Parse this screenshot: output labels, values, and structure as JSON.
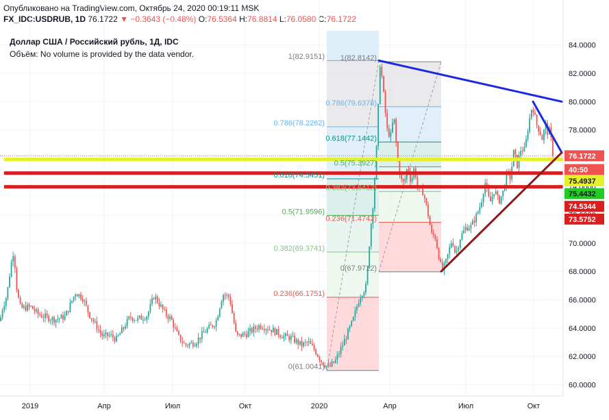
{
  "header": {
    "published": "Опубликовано на TradingView.com, Октябрь 24, 2020 00:19:11 MSK",
    "symbol": "FX_IDC:USDRUB, 1D",
    "last": "76.1722",
    "change": "▼ −0.3643 (−0.48%)",
    "o_label": "O:",
    "o_value": "76.5364",
    "h_label": "H:",
    "h_value": "76.8814",
    "l_label": "L:",
    "l_value": "76.0580",
    "c_label": "C:",
    "c_value": "76.1722"
  },
  "legend": {
    "title": "Доллар США / Российский рубль, 1Д, IDC",
    "volume_label": "Объём:",
    "volume_text": "No volume is provided by the data vendor."
  },
  "colors": {
    "up": "#26a69a",
    "down": "#ef5350",
    "blue_line": "#1a2bdf",
    "dark_red_line": "#8b1a1a",
    "yellow": "#e6f02a",
    "red": "#d81e1e"
  },
  "chart_data": {
    "type": "candlestick",
    "title": "Доллар США / Российский рубль, 1Д, IDC",
    "ylim": [
      59.2,
      85.0
    ],
    "y_ticks": [
      "84.0000",
      "82.0000",
      "80.0000",
      "78.0000",
      "76.0000",
      "74.0000",
      "72.0000",
      "70.0000",
      "68.0000",
      "66.0000",
      "64.0000",
      "62.0000",
      "60.0000"
    ],
    "x_ticks": [
      "2019",
      "Апр",
      "Июл",
      "Окт",
      "2020",
      "Апр",
      "Июл",
      "Окт"
    ],
    "price_path": [
      [
        0,
        64.5
      ],
      [
        4,
        65.5
      ],
      [
        10,
        66.3
      ],
      [
        16,
        68.5
      ],
      [
        20,
        69.5
      ],
      [
        25,
        66.5
      ],
      [
        30,
        65.4
      ],
      [
        45,
        65.5
      ],
      [
        55,
        65.0
      ],
      [
        65,
        64.8
      ],
      [
        80,
        64.6
      ],
      [
        95,
        64.8
      ],
      [
        110,
        66.5
      ],
      [
        120,
        66.2
      ],
      [
        130,
        65.0
      ],
      [
        140,
        64.2
      ],
      [
        150,
        63.4
      ],
      [
        160,
        63.5
      ],
      [
        170,
        63.2
      ],
      [
        180,
        64.0
      ],
      [
        190,
        64.8
      ],
      [
        200,
        64.6
      ],
      [
        215,
        64.9
      ],
      [
        225,
        66.3
      ],
      [
        240,
        65.1
      ],
      [
        250,
        64.6
      ],
      [
        260,
        63.4
      ],
      [
        270,
        62.8
      ],
      [
        285,
        63.0
      ],
      [
        300,
        63.8
      ],
      [
        315,
        64.4
      ],
      [
        325,
        66.4
      ],
      [
        335,
        66.2
      ],
      [
        345,
        63.4
      ],
      [
        360,
        63.6
      ],
      [
        370,
        63.9
      ],
      [
        380,
        64.2
      ],
      [
        390,
        64.0
      ],
      [
        400,
        63.8
      ],
      [
        415,
        63.4
      ],
      [
        425,
        63.3
      ],
      [
        440,
        62.8
      ],
      [
        450,
        63.0
      ],
      [
        460,
        62.4
      ],
      [
        470,
        61.6
      ],
      [
        480,
        61.2
      ],
      [
        490,
        61.7
      ],
      [
        500,
        62.8
      ],
      [
        515,
        64.5
      ],
      [
        525,
        66.2
      ],
      [
        535,
        67.0
      ],
      [
        540,
        70.5
      ],
      [
        545,
        73.0
      ],
      [
        550,
        77.0
      ],
      [
        555,
        82.9
      ],
      [
        560,
        80.5
      ],
      [
        565,
        78.0
      ],
      [
        570,
        77.5
      ],
      [
        575,
        79.0
      ],
      [
        580,
        76.0
      ],
      [
        585,
        74.5
      ],
      [
        590,
        74.2
      ],
      [
        595,
        75.5
      ],
      [
        600,
        74.3
      ],
      [
        605,
        75.4
      ],
      [
        610,
        73.8
      ],
      [
        618,
        73.6
      ],
      [
        625,
        72.0
      ],
      [
        630,
        70.6
      ],
      [
        635,
        70.5
      ],
      [
        641,
        69.0
      ],
      [
        645,
        68.0
      ],
      [
        650,
        68.5
      ],
      [
        655,
        69.4
      ],
      [
        660,
        70.3
      ],
      [
        665,
        69.2
      ],
      [
        672,
        70.4
      ],
      [
        680,
        71.1
      ],
      [
        688,
        71.2
      ],
      [
        695,
        71.9
      ],
      [
        702,
        72.8
      ],
      [
        708,
        74.3
      ],
      [
        715,
        72.8
      ],
      [
        722,
        73.8
      ],
      [
        728,
        72.9
      ],
      [
        735,
        73.7
      ],
      [
        740,
        75.0
      ],
      [
        745,
        74.6
      ],
      [
        750,
        76.5
      ],
      [
        755,
        75.5
      ],
      [
        760,
        76.6
      ],
      [
        766,
        76.6
      ],
      [
        772,
        78.5
      ],
      [
        777,
        79.8
      ],
      [
        783,
        78.4
      ],
      [
        788,
        77.9
      ],
      [
        792,
        77.3
      ],
      [
        796,
        78.5
      ],
      [
        800,
        77.7
      ],
      [
        803,
        78.1
      ],
      [
        806,
        76.4
      ],
      [
        810,
        76.17
      ]
    ],
    "fib_left": {
      "x0": 477,
      "x1": 553,
      "low": 61.0041,
      "high": 82.9151,
      "levels": [
        {
          "label": "0(61.0041)",
          "v": 61.0041,
          "color": "#787b86"
        },
        {
          "label": "0.236(66.1751)",
          "v": 66.1751,
          "color": "#ef5350"
        },
        {
          "label": "0.382(69.3741)",
          "v": 69.3741,
          "color": "#81c784"
        },
        {
          "label": "0.5(71.9596)",
          "v": 71.9596,
          "color": "#4caf50"
        },
        {
          "label": "0.618(74.5451)",
          "v": 74.5451,
          "color": "#009688"
        },
        {
          "label": "0.786(78.2262)",
          "v": 78.2262,
          "color": "#64b5f6"
        },
        {
          "label": "1(82.9151)",
          "v": 82.9151,
          "color": "#787b86"
        }
      ]
    },
    "fib_right": {
      "x0": 553,
      "x1": 644,
      "low": 67.9712,
      "high": 82.8142,
      "levels": [
        {
          "label": "0(67.9712)",
          "v": 67.9712,
          "color": "#787b86"
        },
        {
          "label": "0.236(71.4742)",
          "v": 71.4742,
          "color": "#ef5350"
        },
        {
          "label": "0.382(73.6412)",
          "v": 73.6412,
          "color": "#81c784"
        },
        {
          "label": "0.5(75.3927)",
          "v": 75.3927,
          "color": "#4caf50"
        },
        {
          "label": "0.618(77.1442)",
          "v": 77.1442,
          "color": "#009688"
        },
        {
          "label": "0.786(79.6378)",
          "v": 79.6378,
          "color": "#64b5f6"
        },
        {
          "label": "1(82.8142)",
          "v": 82.8142,
          "color": "#787b86"
        }
      ]
    },
    "horizontal_lines": [
      {
        "v": 75.92,
        "color": "#e6f02a",
        "w": 5
      },
      {
        "v": 74.95,
        "color": "#d81e1e",
        "w": 5
      },
      {
        "v": 73.98,
        "color": "#d81e1e",
        "w": 5
      }
    ],
    "trend_lines": [
      {
        "p": [
          [
            553,
            82.9
          ],
          [
            820,
            80.0
          ]
        ],
        "color": "#1a2bdf",
        "w": 3
      },
      {
        "p": [
          [
            778,
            80.0
          ],
          [
            820,
            76.4
          ]
        ],
        "color": "#1a2bdf",
        "w": 3
      },
      {
        "p": [
          [
            644,
            68.0
          ],
          [
            820,
            76.4
          ]
        ],
        "color": "#8b1a1a",
        "w": 3
      }
    ],
    "price_badges": [
      {
        "text": "76.1722",
        "v": 76.1722,
        "bg": "#ef5350",
        "fg": "#ffffff"
      },
      {
        "text": "40:50",
        "v": 75.2,
        "bg": "#ef5350",
        "fg": "#ffffff"
      },
      {
        "text": "75.4937",
        "v": 74.4,
        "bg": "#e6f02a",
        "fg": "#131722"
      },
      {
        "text": "75.4432",
        "v": 73.5,
        "bg": "#22cc22",
        "fg": "#131722"
      },
      {
        "text": "74.5344",
        "v": 72.6,
        "bg": "#d81e1e",
        "fg": "#ffffff"
      },
      {
        "text": "73.5752",
        "v": 71.7,
        "bg": "#d81e1e",
        "fg": "#ffffff"
      }
    ]
  }
}
